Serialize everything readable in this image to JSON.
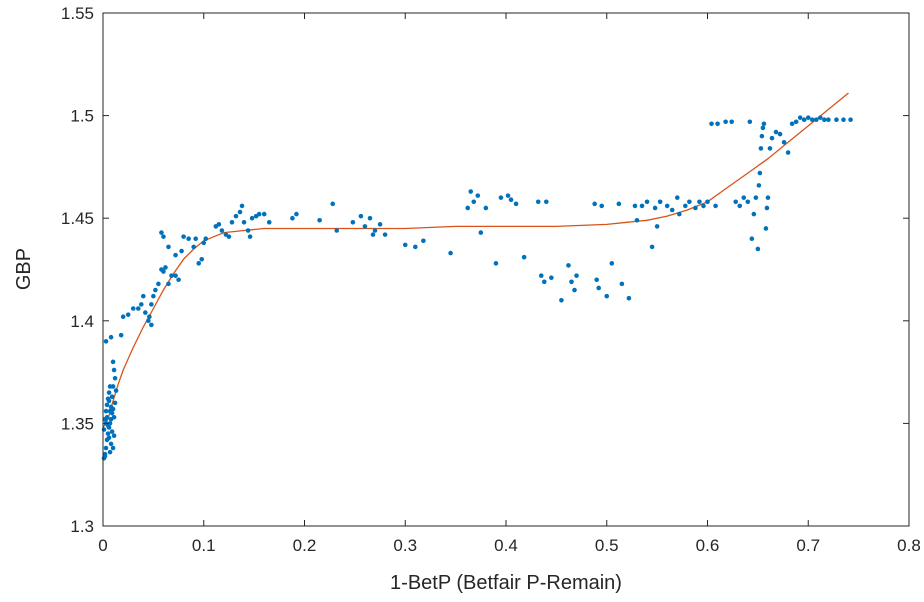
{
  "chart_data": {
    "type": "scatter",
    "xlabel": "1-BetP (Betfair P-Remain)",
    "ylabel": "GBP",
    "xlim": [
      0,
      0.8
    ],
    "ylim": [
      1.3,
      1.55
    ],
    "xticks": [
      {
        "value": 0,
        "label": "0"
      },
      {
        "value": 0.1,
        "label": "0.1"
      },
      {
        "value": 0.2,
        "label": "0.2"
      },
      {
        "value": 0.3,
        "label": "0.3"
      },
      {
        "value": 0.4,
        "label": "0.4"
      },
      {
        "value": 0.5,
        "label": "0.5"
      },
      {
        "value": 0.6,
        "label": "0.6"
      },
      {
        "value": 0.7,
        "label": "0.7"
      },
      {
        "value": 0.8,
        "label": "0.8"
      }
    ],
    "yticks": [
      {
        "value": 1.3,
        "label": "1.3"
      },
      {
        "value": 1.35,
        "label": "1.35"
      },
      {
        "value": 1.4,
        "label": "1.4"
      },
      {
        "value": 1.45,
        "label": "1.45"
      },
      {
        "value": 1.5,
        "label": "1.5"
      },
      {
        "value": 1.55,
        "label": "1.55"
      }
    ],
    "grid": false,
    "box": true,
    "colors": {
      "points": "#0072BD",
      "fit": "#D95319",
      "axes": "#262626"
    },
    "series": [
      {
        "kind": "scatter",
        "points": [
          [
            0.001,
            1.333
          ],
          [
            0.002,
            1.335
          ],
          [
            0.003,
            1.338
          ],
          [
            0.004,
            1.342
          ],
          [
            0.005,
            1.345
          ],
          [
            0.006,
            1.348
          ],
          [
            0.007,
            1.35
          ],
          [
            0.008,
            1.352
          ],
          [
            0.009,
            1.355
          ],
          [
            0.01,
            1.357
          ],
          [
            0.002,
            1.352
          ],
          [
            0.003,
            1.356
          ],
          [
            0.004,
            1.359
          ],
          [
            0.005,
            1.362
          ],
          [
            0.006,
            1.365
          ],
          [
            0.007,
            1.368
          ],
          [
            0.008,
            1.34
          ],
          [
            0.009,
            1.346
          ],
          [
            0.01,
            1.338
          ],
          [
            0.011,
            1.344
          ],
          [
            0.003,
            1.39
          ],
          [
            0.008,
            1.392
          ],
          [
            0.01,
            1.38
          ],
          [
            0.011,
            1.376
          ],
          [
            0.012,
            1.372
          ],
          [
            0.013,
            1.366
          ],
          [
            0.006,
            1.361
          ],
          [
            0.005,
            1.349
          ],
          [
            0.004,
            1.353
          ],
          [
            0.007,
            1.356
          ],
          [
            0.001,
            1.347
          ],
          [
            0.003,
            1.35
          ],
          [
            0.006,
            1.343
          ],
          [
            0.008,
            1.358
          ],
          [
            0.009,
            1.363
          ],
          [
            0.01,
            1.368
          ],
          [
            0.011,
            1.353
          ],
          [
            0.012,
            1.36
          ],
          [
            0.002,
            1.334
          ],
          [
            0.007,
            1.336
          ],
          [
            0.018,
            1.393
          ],
          [
            0.02,
            1.402
          ],
          [
            0.025,
            1.403
          ],
          [
            0.03,
            1.406
          ],
          [
            0.035,
            1.406
          ],
          [
            0.038,
            1.408
          ],
          [
            0.04,
            1.412
          ],
          [
            0.042,
            1.404
          ],
          [
            0.045,
            1.4
          ],
          [
            0.048,
            1.408
          ],
          [
            0.05,
            1.412
          ],
          [
            0.052,
            1.415
          ],
          [
            0.055,
            1.418
          ],
          [
            0.058,
            1.425
          ],
          [
            0.06,
            1.424
          ],
          [
            0.062,
            1.426
          ],
          [
            0.065,
            1.418
          ],
          [
            0.068,
            1.422
          ],
          [
            0.072,
            1.422
          ],
          [
            0.075,
            1.42
          ],
          [
            0.058,
            1.443
          ],
          [
            0.06,
            1.441
          ],
          [
            0.065,
            1.436
          ],
          [
            0.072,
            1.432
          ],
          [
            0.078,
            1.434
          ],
          [
            0.08,
            1.441
          ],
          [
            0.085,
            1.44
          ],
          [
            0.09,
            1.436
          ],
          [
            0.092,
            1.44
          ],
          [
            0.095,
            1.428
          ],
          [
            0.098,
            1.43
          ],
          [
            0.1,
            1.438
          ],
          [
            0.102,
            1.44
          ],
          [
            0.048,
            1.398
          ],
          [
            0.046,
            1.402
          ],
          [
            0.112,
            1.446
          ],
          [
            0.115,
            1.447
          ],
          [
            0.118,
            1.444
          ],
          [
            0.122,
            1.442
          ],
          [
            0.125,
            1.441
          ],
          [
            0.128,
            1.448
          ],
          [
            0.132,
            1.451
          ],
          [
            0.136,
            1.453
          ],
          [
            0.138,
            1.456
          ],
          [
            0.14,
            1.448
          ],
          [
            0.144,
            1.444
          ],
          [
            0.146,
            1.441
          ],
          [
            0.148,
            1.45
          ],
          [
            0.152,
            1.451
          ],
          [
            0.155,
            1.452
          ],
          [
            0.16,
            1.452
          ],
          [
            0.165,
            1.448
          ],
          [
            0.188,
            1.45
          ],
          [
            0.192,
            1.452
          ],
          [
            0.215,
            1.449
          ],
          [
            0.228,
            1.457
          ],
          [
            0.232,
            1.444
          ],
          [
            0.248,
            1.448
          ],
          [
            0.256,
            1.451
          ],
          [
            0.26,
            1.446
          ],
          [
            0.265,
            1.45
          ],
          [
            0.268,
            1.442
          ],
          [
            0.27,
            1.444
          ],
          [
            0.275,
            1.447
          ],
          [
            0.28,
            1.442
          ],
          [
            0.3,
            1.437
          ],
          [
            0.31,
            1.436
          ],
          [
            0.318,
            1.439
          ],
          [
            0.345,
            1.433
          ],
          [
            0.362,
            1.455
          ],
          [
            0.365,
            1.463
          ],
          [
            0.368,
            1.458
          ],
          [
            0.372,
            1.461
          ],
          [
            0.375,
            1.443
          ],
          [
            0.38,
            1.455
          ],
          [
            0.39,
            1.428
          ],
          [
            0.395,
            1.46
          ],
          [
            0.402,
            1.461
          ],
          [
            0.405,
            1.459
          ],
          [
            0.41,
            1.457
          ],
          [
            0.418,
            1.431
          ],
          [
            0.432,
            1.458
          ],
          [
            0.435,
            1.422
          ],
          [
            0.438,
            1.419
          ],
          [
            0.44,
            1.458
          ],
          [
            0.445,
            1.421
          ],
          [
            0.455,
            1.41
          ],
          [
            0.462,
            1.427
          ],
          [
            0.465,
            1.419
          ],
          [
            0.468,
            1.415
          ],
          [
            0.47,
            1.422
          ],
          [
            0.488,
            1.457
          ],
          [
            0.49,
            1.42
          ],
          [
            0.492,
            1.416
          ],
          [
            0.495,
            1.456
          ],
          [
            0.5,
            1.412
          ],
          [
            0.505,
            1.428
          ],
          [
            0.512,
            1.457
          ],
          [
            0.515,
            1.418
          ],
          [
            0.522,
            1.411
          ],
          [
            0.528,
            1.456
          ],
          [
            0.53,
            1.449
          ],
          [
            0.535,
            1.456
          ],
          [
            0.54,
            1.458
          ],
          [
            0.545,
            1.436
          ],
          [
            0.548,
            1.455
          ],
          [
            0.55,
            1.446
          ],
          [
            0.553,
            1.458
          ],
          [
            0.56,
            1.456
          ],
          [
            0.565,
            1.454
          ],
          [
            0.57,
            1.46
          ],
          [
            0.572,
            1.452
          ],
          [
            0.578,
            1.456
          ],
          [
            0.582,
            1.458
          ],
          [
            0.588,
            1.455
          ],
          [
            0.592,
            1.458
          ],
          [
            0.596,
            1.456
          ],
          [
            0.6,
            1.458
          ],
          [
            0.604,
            1.496
          ],
          [
            0.608,
            1.456
          ],
          [
            0.61,
            1.496
          ],
          [
            0.618,
            1.497
          ],
          [
            0.624,
            1.497
          ],
          [
            0.628,
            1.458
          ],
          [
            0.632,
            1.456
          ],
          [
            0.636,
            1.46
          ],
          [
            0.64,
            1.458
          ],
          [
            0.642,
            1.497
          ],
          [
            0.644,
            1.44
          ],
          [
            0.646,
            1.452
          ],
          [
            0.648,
            1.46
          ],
          [
            0.65,
            1.435
          ],
          [
            0.651,
            1.466
          ],
          [
            0.652,
            1.472
          ],
          [
            0.653,
            1.484
          ],
          [
            0.654,
            1.49
          ],
          [
            0.655,
            1.494
          ],
          [
            0.656,
            1.496
          ],
          [
            0.658,
            1.445
          ],
          [
            0.659,
            1.455
          ],
          [
            0.66,
            1.46
          ],
          [
            0.662,
            1.484
          ],
          [
            0.664,
            1.489
          ],
          [
            0.668,
            1.492
          ],
          [
            0.672,
            1.491
          ],
          [
            0.676,
            1.487
          ],
          [
            0.68,
            1.482
          ],
          [
            0.684,
            1.496
          ],
          [
            0.688,
            1.497
          ],
          [
            0.692,
            1.499
          ],
          [
            0.696,
            1.498
          ],
          [
            0.7,
            1.499
          ],
          [
            0.704,
            1.498
          ],
          [
            0.708,
            1.498
          ],
          [
            0.712,
            1.499
          ],
          [
            0.716,
            1.498
          ],
          [
            0.72,
            1.498
          ],
          [
            0.728,
            1.498
          ],
          [
            0.735,
            1.498
          ],
          [
            0.742,
            1.498
          ]
        ]
      },
      {
        "kind": "fit-line",
        "points": [
          [
            0.0,
            1.348
          ],
          [
            0.005,
            1.352
          ],
          [
            0.01,
            1.361
          ],
          [
            0.015,
            1.369
          ],
          [
            0.02,
            1.376
          ],
          [
            0.03,
            1.387
          ],
          [
            0.04,
            1.397
          ],
          [
            0.05,
            1.406
          ],
          [
            0.06,
            1.415
          ],
          [
            0.07,
            1.423
          ],
          [
            0.08,
            1.43
          ],
          [
            0.09,
            1.435
          ],
          [
            0.1,
            1.439
          ],
          [
            0.11,
            1.441
          ],
          [
            0.12,
            1.443
          ],
          [
            0.14,
            1.444
          ],
          [
            0.16,
            1.445
          ],
          [
            0.2,
            1.445
          ],
          [
            0.25,
            1.445
          ],
          [
            0.3,
            1.445
          ],
          [
            0.35,
            1.446
          ],
          [
            0.4,
            1.446
          ],
          [
            0.45,
            1.446
          ],
          [
            0.5,
            1.447
          ],
          [
            0.52,
            1.448
          ],
          [
            0.54,
            1.449
          ],
          [
            0.56,
            1.451
          ],
          [
            0.58,
            1.454
          ],
          [
            0.6,
            1.458
          ],
          [
            0.62,
            1.465
          ],
          [
            0.64,
            1.472
          ],
          [
            0.66,
            1.479
          ],
          [
            0.68,
            1.487
          ],
          [
            0.7,
            1.495
          ],
          [
            0.72,
            1.503
          ],
          [
            0.74,
            1.511
          ]
        ]
      }
    ]
  }
}
